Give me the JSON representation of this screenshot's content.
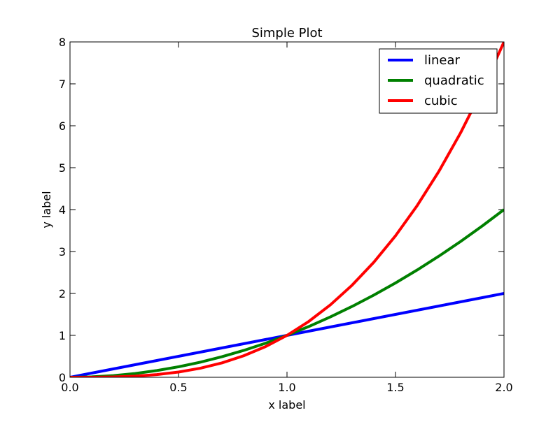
{
  "chart_data": {
    "type": "line",
    "title": "Simple Plot",
    "xlabel": "x label",
    "ylabel": "y label",
    "xlim": [
      0,
      2
    ],
    "ylim": [
      0,
      8
    ],
    "xticks": [
      "0.0",
      "0.5",
      "1.0",
      "1.5",
      "2.0"
    ],
    "yticks": [
      "0",
      "1",
      "2",
      "3",
      "4",
      "5",
      "6",
      "7",
      "8"
    ],
    "grid": false,
    "legend_position": "top-right",
    "x": [
      0,
      0.1,
      0.2,
      0.3,
      0.4,
      0.5,
      0.6,
      0.7,
      0.8,
      0.9,
      1.0,
      1.1,
      1.2,
      1.3,
      1.4,
      1.5,
      1.6,
      1.7,
      1.8,
      1.9,
      2.0
    ],
    "series": [
      {
        "name": "linear",
        "color": "#0000ff",
        "values": [
          0,
          0.1,
          0.2,
          0.3,
          0.4,
          0.5,
          0.6,
          0.7,
          0.8,
          0.9,
          1.0,
          1.1,
          1.2,
          1.3,
          1.4,
          1.5,
          1.6,
          1.7,
          1.8,
          1.9,
          2.0
        ]
      },
      {
        "name": "quadratic",
        "color": "#008000",
        "values": [
          0,
          0.01,
          0.04,
          0.09,
          0.16,
          0.25,
          0.36,
          0.49,
          0.64,
          0.81,
          1,
          1.21,
          1.44,
          1.69,
          1.96,
          2.25,
          2.56,
          2.89,
          3.24,
          3.61,
          4
        ]
      },
      {
        "name": "cubic",
        "color": "#ff0000",
        "values": [
          0,
          0.001,
          0.008,
          0.027,
          0.064,
          0.125,
          0.216,
          0.343,
          0.512,
          0.729,
          1,
          1.331,
          1.728,
          2.197,
          2.744,
          3.375,
          4.096,
          4.913,
          5.832,
          6.859,
          8
        ]
      }
    ]
  }
}
